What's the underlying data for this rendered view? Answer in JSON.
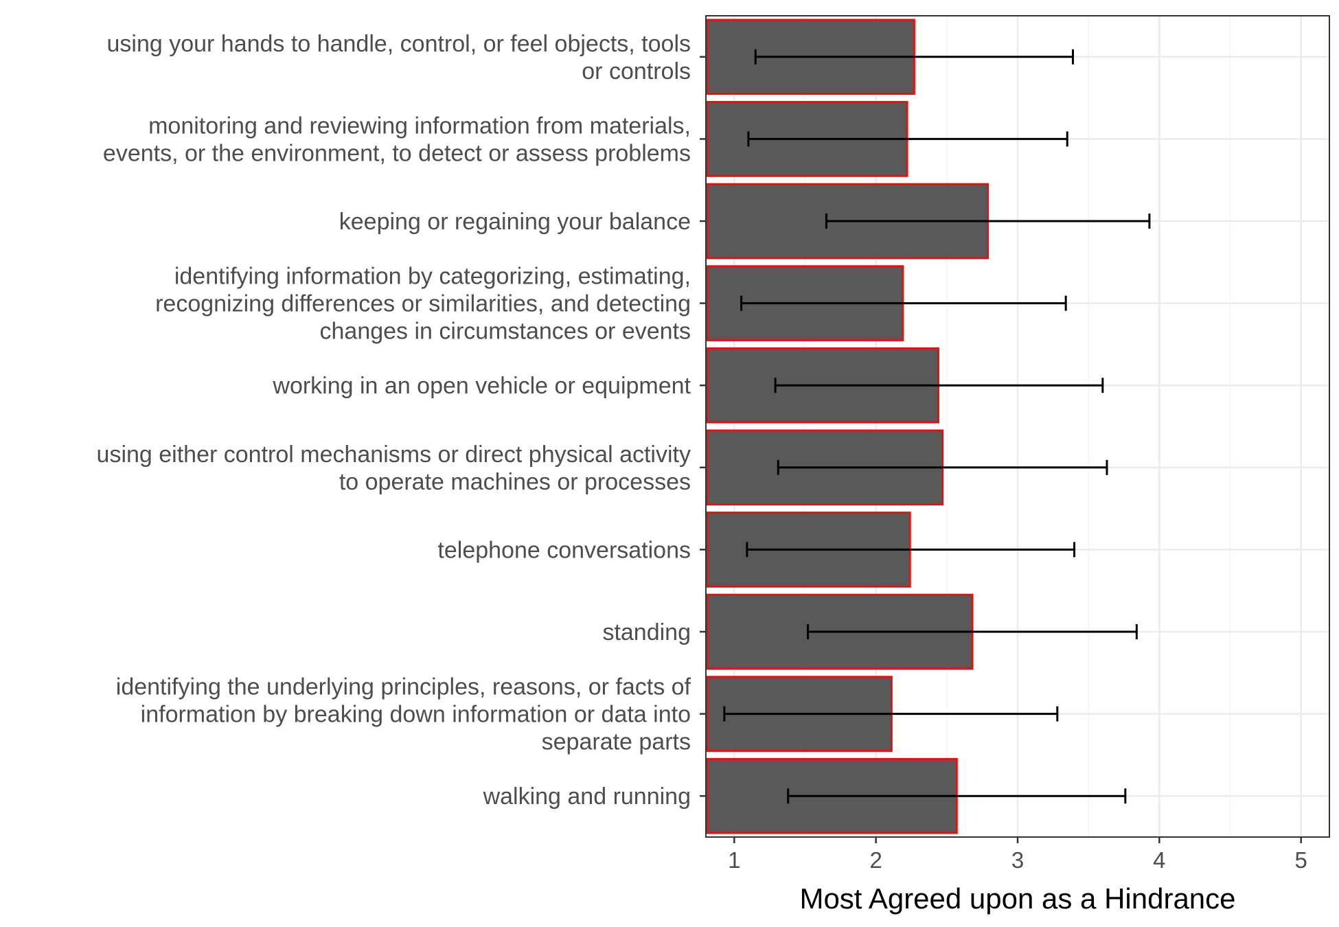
{
  "chart_data": {
    "type": "bar",
    "orientation": "horizontal",
    "title": "",
    "xlabel": "Most Agreed upon as a Hindrance",
    "ylabel": "",
    "xlim": [
      0.8,
      5.2
    ],
    "xticks": [
      "1",
      "2",
      "3",
      "4",
      "5"
    ],
    "grid": true,
    "legend": "none",
    "categories": [
      [
        "using your hands to handle, control, or feel objects, tools",
        "or controls"
      ],
      [
        "monitoring and reviewing information from materials,",
        "events, or the environment, to detect or assess problems"
      ],
      [
        "keeping or regaining your balance"
      ],
      [
        "identifying information by categorizing, estimating,",
        "recognizing differences or similarities, and detecting",
        "changes in circumstances or events"
      ],
      [
        "working in an open vehicle or equipment"
      ],
      [
        "using either control mechanisms or direct physical activity",
        "to operate machines or processes"
      ],
      [
        "telephone conversations"
      ],
      [
        "standing"
      ],
      [
        "identifying the underlying principles, reasons, or facts of",
        "information by breaking down information or data into",
        "separate parts"
      ],
      [
        "walking and running"
      ]
    ],
    "values": [
      2.27,
      2.22,
      2.79,
      2.19,
      2.44,
      2.47,
      2.24,
      2.68,
      2.11,
      2.57
    ],
    "error_low": [
      1.15,
      1.1,
      1.65,
      1.05,
      1.29,
      1.31,
      1.09,
      1.52,
      0.93,
      1.38
    ],
    "error_high": [
      3.39,
      3.35,
      3.93,
      3.34,
      3.6,
      3.63,
      3.4,
      3.84,
      3.28,
      3.76
    ],
    "colors": {
      "bar_fill": "#595959",
      "bar_outline": "#e8100e",
      "error_bar": "#000000",
      "grid_major": "#ebebeb",
      "grid_minor": "#f4f4f4",
      "panel_border": "#333333"
    }
  }
}
